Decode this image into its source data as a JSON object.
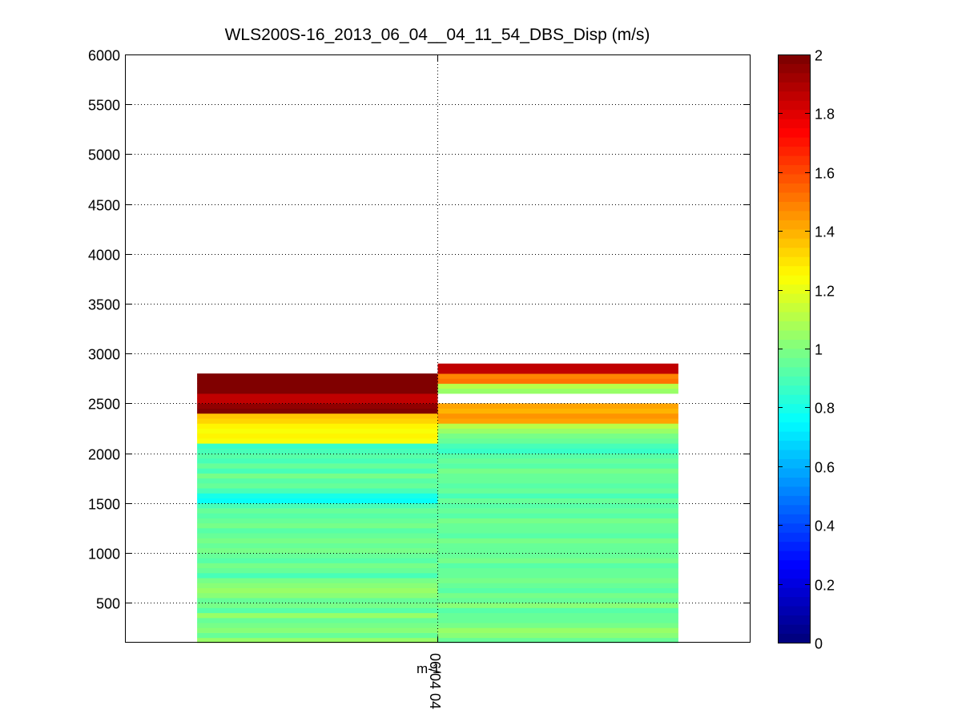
{
  "chart_data": {
    "type": "heatmap",
    "title": "WLS200S-16_2013_06_04__04_11_54_DBS_Disp (m/s)",
    "xlabel": "",
    "ylabel": "",
    "ylim": [
      100,
      6000
    ],
    "yticks": [
      500,
      1000,
      1500,
      2000,
      2500,
      3000,
      3500,
      4000,
      4500,
      5000,
      5500,
      6000
    ],
    "xtick_label": "06/04 04",
    "xtick_overlap_text": "m-1",
    "grid": true,
    "colorbar": {
      "colormap": "jet",
      "clim": [
        0,
        2
      ],
      "ticks": [
        0,
        0.2,
        0.4,
        0.6,
        0.8,
        1,
        1.2,
        1.4,
        1.6,
        1.8,
        2
      ]
    },
    "row_height_m": 50,
    "columns": [
      {
        "name": "left",
        "x_range": [
          -1,
          0
        ],
        "rows": [
          [
            100,
            1.05
          ],
          [
            150,
            0.95
          ],
          [
            200,
            1.02
          ],
          [
            250,
            0.98
          ],
          [
            300,
            0.95
          ],
          [
            350,
            1.05
          ],
          [
            400,
            0.93
          ],
          [
            450,
            0.98
          ],
          [
            500,
            0.95
          ],
          [
            550,
            1.0
          ],
          [
            600,
            1.05
          ],
          [
            650,
            1.02
          ],
          [
            700,
            0.98
          ],
          [
            750,
            0.88
          ],
          [
            800,
            0.95
          ],
          [
            850,
            0.97
          ],
          [
            900,
            0.93
          ],
          [
            950,
            0.96
          ],
          [
            1000,
            0.98
          ],
          [
            1050,
            0.94
          ],
          [
            1100,
            0.97
          ],
          [
            1150,
            0.95
          ],
          [
            1200,
            0.93
          ],
          [
            1250,
            0.98
          ],
          [
            1300,
            0.95
          ],
          [
            1350,
            0.92
          ],
          [
            1400,
            0.96
          ],
          [
            1450,
            0.9
          ],
          [
            1500,
            0.78
          ],
          [
            1550,
            0.8
          ],
          [
            1600,
            0.9
          ],
          [
            1650,
            0.95
          ],
          [
            1700,
            0.93
          ],
          [
            1750,
            0.97
          ],
          [
            1800,
            0.9
          ],
          [
            1850,
            0.94
          ],
          [
            1900,
            0.88
          ],
          [
            1950,
            0.93
          ],
          [
            2000,
            0.9
          ],
          [
            2050,
            0.85
          ],
          [
            2100,
            1.22
          ],
          [
            2150,
            1.25
          ],
          [
            2200,
            1.23
          ],
          [
            2250,
            1.27
          ],
          [
            2300,
            1.33
          ],
          [
            2350,
            1.35
          ],
          [
            2400,
            1.97
          ],
          [
            2450,
            1.96
          ],
          [
            2500,
            1.85
          ],
          [
            2550,
            1.87
          ],
          [
            2600,
            2.0
          ],
          [
            2650,
            2.0
          ],
          [
            2700,
            1.98
          ],
          [
            2750,
            1.99
          ]
        ]
      },
      {
        "name": "right",
        "x_range": [
          0,
          1
        ],
        "rows": [
          [
            100,
            0.95
          ],
          [
            150,
            1.02
          ],
          [
            200,
            1.05
          ],
          [
            250,
            0.98
          ],
          [
            300,
            0.95
          ],
          [
            350,
            0.96
          ],
          [
            400,
            0.93
          ],
          [
            450,
            1.0
          ],
          [
            500,
            0.95
          ],
          [
            550,
            0.97
          ],
          [
            600,
            0.93
          ],
          [
            650,
            0.96
          ],
          [
            700,
            0.98
          ],
          [
            750,
            0.94
          ],
          [
            800,
            0.96
          ],
          [
            850,
            0.93
          ],
          [
            900,
            0.97
          ],
          [
            950,
            0.95
          ],
          [
            1000,
            0.96
          ],
          [
            1050,
            0.94
          ],
          [
            1100,
            0.97
          ],
          [
            1150,
            0.93
          ],
          [
            1200,
            0.96
          ],
          [
            1250,
            0.95
          ],
          [
            1300,
            0.97
          ],
          [
            1350,
            0.93
          ],
          [
            1400,
            0.96
          ],
          [
            1450,
            0.92
          ],
          [
            1500,
            0.95
          ],
          [
            1550,
            0.9
          ],
          [
            1600,
            0.95
          ],
          [
            1650,
            0.93
          ],
          [
            1700,
            0.96
          ],
          [
            1750,
            0.94
          ],
          [
            1800,
            0.97
          ],
          [
            1850,
            0.93
          ],
          [
            1900,
            0.95
          ],
          [
            1950,
            0.92
          ],
          [
            2000,
            0.85
          ],
          [
            2050,
            0.9
          ],
          [
            2100,
            0.95
          ],
          [
            2150,
            0.98
          ],
          [
            2200,
            1.05
          ],
          [
            2250,
            1.1
          ],
          [
            2300,
            1.42
          ],
          [
            2350,
            1.45
          ],
          [
            2400,
            1.4
          ],
          [
            2450,
            1.43
          ],
          [
            2500,
            null
          ],
          [
            2550,
            null
          ],
          [
            2600,
            1.05
          ],
          [
            2650,
            1.1
          ],
          [
            2700,
            1.5
          ],
          [
            2750,
            1.48
          ],
          [
            2800,
            1.85
          ],
          [
            2850,
            1.87
          ]
        ]
      }
    ]
  }
}
